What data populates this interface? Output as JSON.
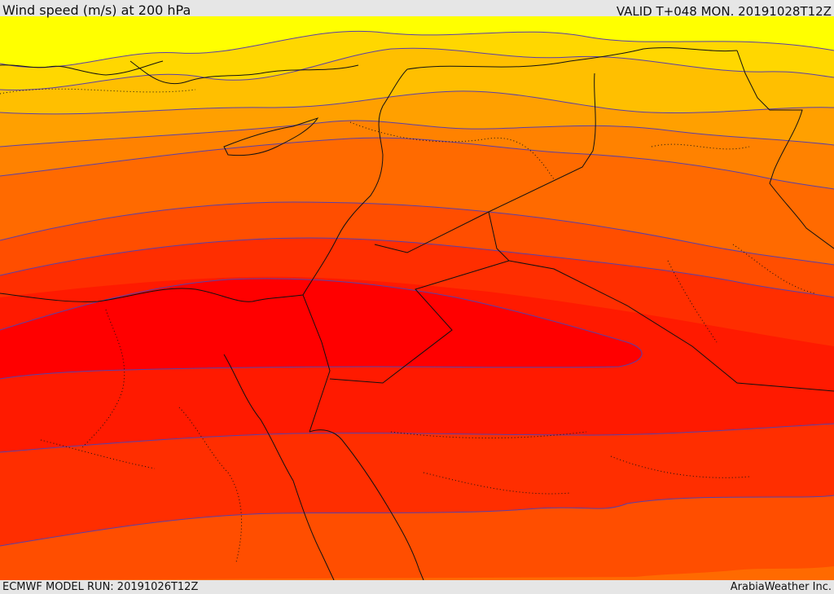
{
  "header": {
    "title": "Wind speed (m/s) at 200 hPa",
    "valid": "VALID T+048 MON. 20191028T12Z"
  },
  "footer": {
    "model_run": "ECMWF MODEL RUN: 20191026T12Z",
    "credit": "ArabiaWeather Inc."
  },
  "map": {
    "field": "wind speed 200 hPa",
    "colors": {
      "band_1": "#ffff00",
      "band_2": "#ffd700",
      "band_3": "#ffbf00",
      "band_4": "#ffa000",
      "band_5": "#ff8200",
      "band_6": "#ff6a00",
      "band_7": "#ff4e00",
      "band_8": "#ff2e00",
      "band_9": "#ff1a00",
      "band_10": "#ff0000",
      "contour_line": "#5a3fa8",
      "border_line": "#111111"
    }
  }
}
